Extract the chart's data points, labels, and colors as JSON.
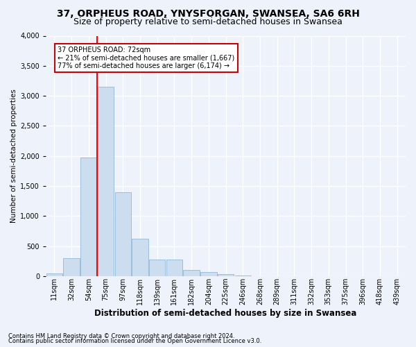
{
  "title": "37, ORPHEUS ROAD, YNYSFORGAN, SWANSEA, SA6 6RH",
  "subtitle": "Size of property relative to semi-detached houses in Swansea",
  "xlabel": "Distribution of semi-detached houses by size in Swansea",
  "ylabel": "Number of semi-detached properties",
  "annotation_title": "37 ORPHEUS ROAD: 72sqm",
  "annotation_line1": "← 21% of semi-detached houses are smaller (1,667)",
  "annotation_line2": "77% of semi-detached houses are larger (6,174) →",
  "footer1": "Contains HM Land Registry data © Crown copyright and database right 2024.",
  "footer2": "Contains public sector information licensed under the Open Government Licence v3.0.",
  "bar_color": "#ccddf0",
  "bar_edge_color": "#90b8d8",
  "red_line_x": 3,
  "categories": [
    "11sqm",
    "32sqm",
    "54sqm",
    "75sqm",
    "97sqm",
    "118sqm",
    "139sqm",
    "161sqm",
    "182sqm",
    "204sqm",
    "225sqm",
    "246sqm",
    "268sqm",
    "289sqm",
    "311sqm",
    "332sqm",
    "353sqm",
    "375sqm",
    "396sqm",
    "418sqm",
    "439sqm"
  ],
  "values": [
    50,
    300,
    1980,
    3150,
    1400,
    620,
    280,
    280,
    110,
    75,
    35,
    10,
    5,
    5,
    5,
    3,
    2,
    2,
    2,
    2,
    2
  ],
  "ylim": [
    0,
    4000
  ],
  "yticks": [
    0,
    500,
    1000,
    1500,
    2000,
    2500,
    3000,
    3500,
    4000
  ],
  "background_color": "#eef2fa",
  "grid_color": "#ffffff",
  "annotation_box_color": "#ffffff",
  "annotation_box_edge": "#cc0000",
  "title_fontsize": 10,
  "subtitle_fontsize": 9,
  "xlabel_fontsize": 8.5,
  "ylabel_fontsize": 7.5,
  "footer_fontsize": 6,
  "tick_fontsize": 7,
  "annotation_fontsize": 7
}
